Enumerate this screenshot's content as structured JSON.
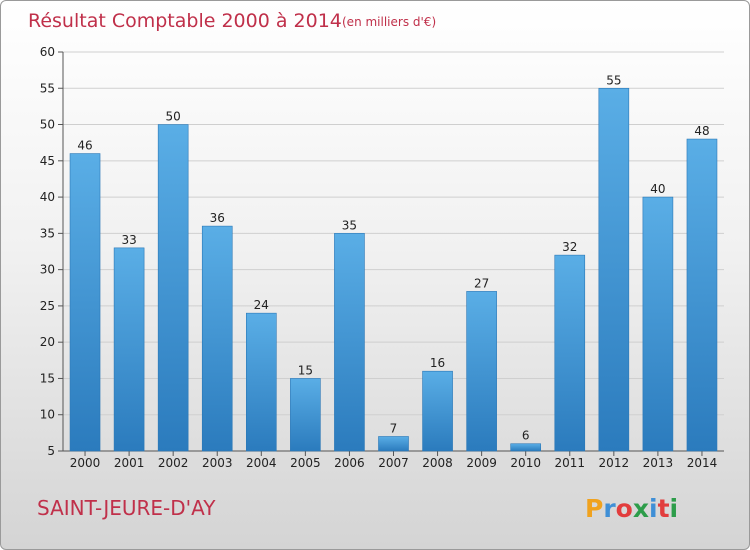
{
  "chart_data": {
    "type": "bar",
    "title": "Résultat Comptable 2000 à 2014",
    "subtitle": "(en milliers d'€)",
    "categories": [
      "2000",
      "2001",
      "2002",
      "2003",
      "2004",
      "2005",
      "2006",
      "2007",
      "2008",
      "2009",
      "2010",
      "2011",
      "2012",
      "2013",
      "2014"
    ],
    "values": [
      46,
      33,
      50,
      36,
      24,
      15,
      35,
      7,
      16,
      27,
      6,
      32,
      55,
      40,
      48
    ],
    "ylim": [
      5,
      60
    ],
    "yticks": [
      5,
      10,
      15,
      20,
      25,
      30,
      35,
      40,
      45,
      50,
      55,
      60
    ],
    "grid": true,
    "xlabel": "",
    "ylabel": ""
  },
  "footer": {
    "commune": "SAINT-JEURE-D'AY",
    "logo": "Proxiti"
  },
  "colors": {
    "bar_light": "#5aaee6",
    "bar_dark": "#2b7bbd",
    "title": "#c0304a"
  }
}
